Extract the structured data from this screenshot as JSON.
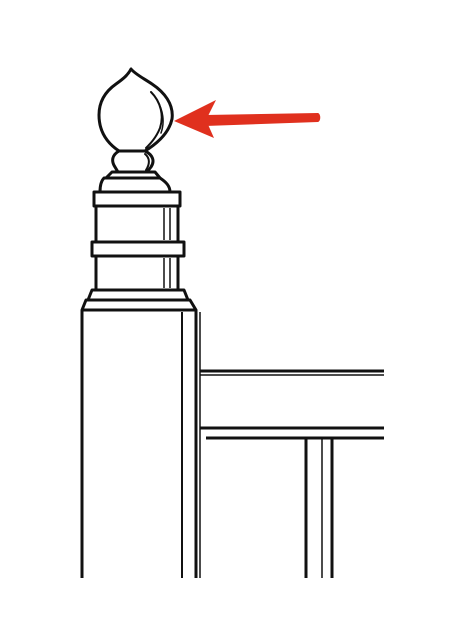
{
  "figure": {
    "subject": "bedpost-finial-line-drawing",
    "ink_color": "#111111",
    "background_color": "#ffffff",
    "pointer": {
      "color": "#e0301e",
      "target": "finial-bulb"
    }
  }
}
